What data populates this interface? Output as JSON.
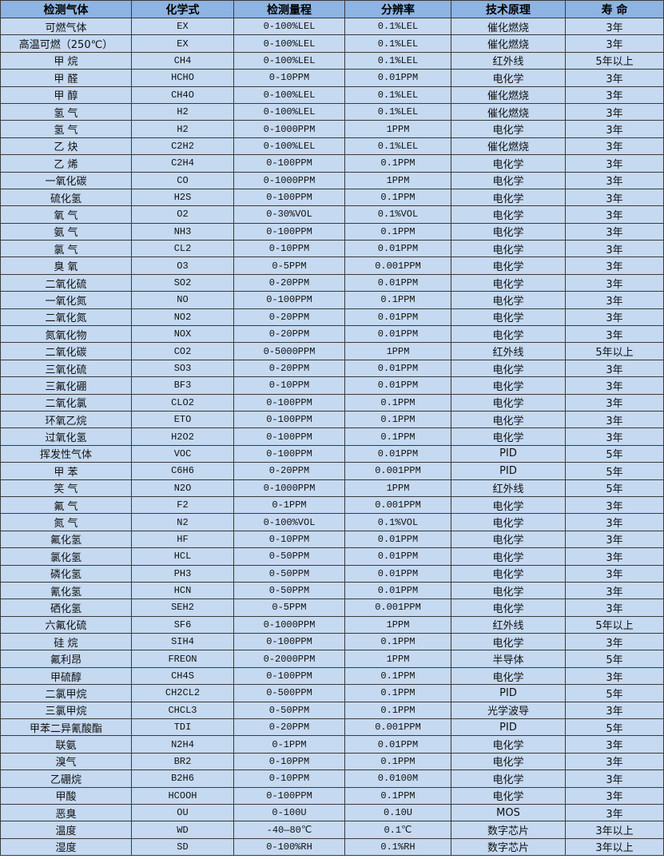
{
  "headers": [
    "检测气体",
    "化学式",
    "检测量程",
    "分辨率",
    "技术原理",
    "寿 命"
  ],
  "rows": [
    [
      "可燃气体",
      "EX",
      "0-100%LEL",
      "0.1%LEL",
      "催化燃烧",
      "3年"
    ],
    [
      "高温可燃（250℃）",
      "EX",
      "0-100%LEL",
      "0.1%LEL",
      "催化燃烧",
      "3年"
    ],
    [
      "甲 烷",
      "CH4",
      "0-100%LEL",
      "0.1%LEL",
      "红外线",
      "5年以上"
    ],
    [
      "甲 醛",
      "HCHO",
      "0-10PPM",
      "0.01PPM",
      "电化学",
      "3年"
    ],
    [
      "甲 醇",
      "CH4O",
      "0-100%LEL",
      "0.1%LEL",
      "催化燃烧",
      "3年"
    ],
    [
      "氢 气",
      "H2",
      "0-100%LEL",
      "0.1%LEL",
      "催化燃烧",
      "3年"
    ],
    [
      "氢 气",
      "H2",
      "0-1000PPM",
      "1PPM",
      "电化学",
      "3年"
    ],
    [
      "乙 炔",
      "C2H2",
      "0-100%LEL",
      "0.1%LEL",
      "催化燃烧",
      "3年"
    ],
    [
      "乙 烯",
      "C2H4",
      "0-100PPM",
      "0.1PPM",
      "电化学",
      "3年"
    ],
    [
      "一氧化碳",
      "CO",
      "0-1000PPM",
      "1PPM",
      "电化学",
      "3年"
    ],
    [
      "硫化氢",
      "H2S",
      "0-100PPM",
      "0.1PPM",
      "电化学",
      "3年"
    ],
    [
      "氧 气",
      "O2",
      "0-30%VOL",
      "0.1%VOL",
      "电化学",
      "3年"
    ],
    [
      "氨 气",
      "NH3",
      "0-100PPM",
      "0.1PPM",
      "电化学",
      "3年"
    ],
    [
      "氯 气",
      "CL2",
      "0-10PPM",
      "0.01PPM",
      "电化学",
      "3年"
    ],
    [
      "臭 氧",
      "O3",
      "0-5PPM",
      "0.001PPM",
      "电化学",
      "3年"
    ],
    [
      "二氧化硫",
      "SO2",
      "0-20PPM",
      "0.01PPM",
      "电化学",
      "3年"
    ],
    [
      "一氧化氮",
      "NO",
      "0-100PPM",
      "0.1PPM",
      "电化学",
      "3年"
    ],
    [
      "二氧化氮",
      "NO2",
      "0-20PPM",
      "0.01PPM",
      "电化学",
      "3年"
    ],
    [
      "氮氧化物",
      "NOX",
      "0-20PPM",
      "0.01PPM",
      "电化学",
      "3年"
    ],
    [
      "二氧化碳",
      "CO2",
      "0-5000PPM",
      "1PPM",
      "红外线",
      "5年以上"
    ],
    [
      "三氧化硫",
      "SO3",
      "0-20PPM",
      "0.01PPM",
      "电化学",
      "3年"
    ],
    [
      "三氟化硼",
      "BF3",
      "0-10PPM",
      "0.01PPM",
      "电化学",
      "3年"
    ],
    [
      "二氧化氯",
      "CLO2",
      "0-100PPM",
      "0.1PPM",
      "电化学",
      "3年"
    ],
    [
      "环氧乙烷",
      "ETO",
      "0-100PPM",
      "0.1PPM",
      "电化学",
      "3年"
    ],
    [
      "过氧化氢",
      "H2O2",
      "0-100PPM",
      "0.1PPM",
      "电化学",
      "3年"
    ],
    [
      "挥发性气体",
      "VOC",
      "0-100PPM",
      "0.01PPM",
      "PID",
      "5年"
    ],
    [
      "甲 苯",
      "C6H6",
      "0-20PPM",
      "0.001PPM",
      "PID",
      "5年"
    ],
    [
      "笑 气",
      "N2O",
      "0-1000PPM",
      "1PPM",
      "红外线",
      "5年"
    ],
    [
      "氟 气",
      "F2",
      "0-1PPM",
      "0.001PPM",
      "电化学",
      "3年"
    ],
    [
      "氮 气",
      "N2",
      "0-100%VOL",
      "0.1%VOL",
      "电化学",
      "3年"
    ],
    [
      "氟化氢",
      "HF",
      "0-10PPM",
      "0.01PPM",
      "电化学",
      "3年"
    ],
    [
      "氯化氢",
      "HCL",
      "0-50PPM",
      "0.01PPM",
      "电化学",
      "3年"
    ],
    [
      "磷化氢",
      "PH3",
      "0-50PPM",
      "0.01PPM",
      "电化学",
      "3年"
    ],
    [
      "氰化氢",
      "HCN",
      "0-50PPM",
      "0.01PPM",
      "电化学",
      "3年"
    ],
    [
      "硒化氢",
      "SEH2",
      "0-5PPM",
      "0.001PPM",
      "电化学",
      "3年"
    ],
    [
      "六氟化硫",
      "SF6",
      "0-1000PPM",
      "1PPM",
      "红外线",
      "5年以上"
    ],
    [
      "硅 烷",
      "SIH4",
      "0-100PPM",
      "0.1PPM",
      "电化学",
      "3年"
    ],
    [
      "氟利昂",
      "FREON",
      "0-2000PPM",
      "1PPM",
      "半导体",
      "5年"
    ],
    [
      "甲硫醇",
      "CH4S",
      "0-100PPM",
      "0.1PPM",
      "电化学",
      "3年"
    ],
    [
      "二氯甲烷",
      "CH2CL2",
      "0-500PPM",
      "0.1PPM",
      "PID",
      "5年"
    ],
    [
      "三氯甲烷",
      "CHCL3",
      "0-50PPM",
      "0.1PPM",
      "光学波导",
      "3年"
    ],
    [
      "甲苯二异氰酸酯",
      "TDI",
      "0-20PPM",
      "0.001PPM",
      "PID",
      "5年"
    ],
    [
      "联氨",
      "N2H4",
      "0-1PPM",
      "0.01PPM",
      "电化学",
      "3年"
    ],
    [
      "溴气",
      "BR2",
      "0-10PPM",
      "0.1PPM",
      "电化学",
      "3年"
    ],
    [
      "乙硼烷",
      "B2H6",
      "0-10PPM",
      "0.0100M",
      "电化学",
      "3年"
    ],
    [
      "甲酸",
      "HCOOH",
      "0-100PPM",
      "0.1PPM",
      "电化学",
      "3年"
    ],
    [
      "恶臭",
      "OU",
      "0-100U",
      "0.10U",
      "MOS",
      "3年"
    ],
    [
      "温度",
      "WD",
      "-40—80℃",
      "0.1℃",
      "数字芯片",
      "3年以上"
    ],
    [
      "湿度",
      "SD",
      "0-100%RH",
      "0.1%RH",
      "数字芯片",
      "3年以上"
    ]
  ]
}
